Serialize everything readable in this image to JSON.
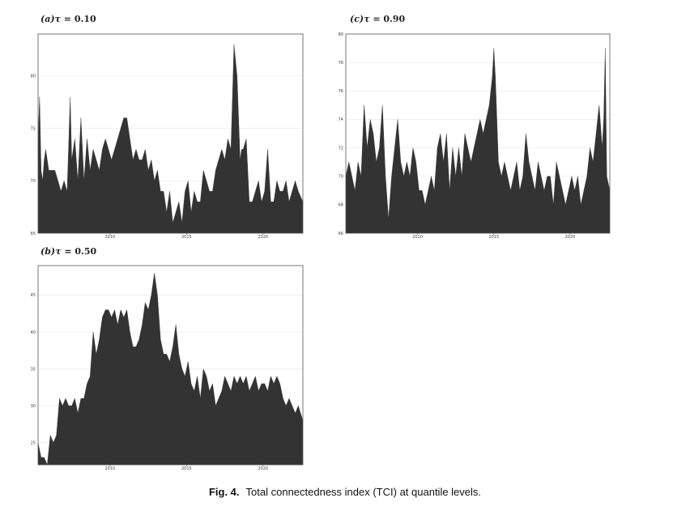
{
  "caption": {
    "label": "Fig. 4.",
    "text": "Total connectedness index (TCI) at quantile levels."
  },
  "chart_data": [
    {
      "id": "a",
      "type": "area",
      "title_prefix": "(a)",
      "title_tau": "τ",
      "title_value": "= 0.10",
      "xlim": [
        2005.3,
        2022.6
      ],
      "ylim": [
        65,
        84
      ],
      "x_ticks": [
        2010,
        2015,
        2020
      ],
      "y_ticks": [
        65,
        70,
        75,
        80
      ],
      "x_tick_labels": [
        "2010",
        "2015",
        "2020"
      ],
      "y_tick_labels": [
        "65",
        "70",
        "75",
        "80"
      ],
      "fill_color": "#333333",
      "x": [
        2005.3,
        2005.4,
        2005.5,
        2005.6,
        2005.7,
        2005.8,
        2005.9,
        2006.0,
        2006.2,
        2006.4,
        2006.6,
        2006.8,
        2007.0,
        2007.2,
        2007.4,
        2007.5,
        2007.7,
        2007.9,
        2008.1,
        2008.3,
        2008.5,
        2008.7,
        2008.9,
        2009.1,
        2009.3,
        2009.5,
        2009.7,
        2009.9,
        2010.1,
        2010.3,
        2010.5,
        2010.7,
        2010.9,
        2011.1,
        2011.3,
        2011.5,
        2011.7,
        2011.9,
        2012.1,
        2012.3,
        2012.5,
        2012.7,
        2012.9,
        2013.1,
        2013.3,
        2013.5,
        2013.7,
        2013.9,
        2014.1,
        2014.3,
        2014.5,
        2014.7,
        2014.9,
        2015.1,
        2015.3,
        2015.5,
        2015.7,
        2015.9,
        2016.1,
        2016.3,
        2016.5,
        2016.7,
        2016.9,
        2017.1,
        2017.3,
        2017.5,
        2017.7,
        2017.9,
        2018.1,
        2018.3,
        2018.5,
        2018.6,
        2018.7,
        2018.9,
        2019.1,
        2019.3,
        2019.5,
        2019.7,
        2019.9,
        2020.1,
        2020.3,
        2020.5,
        2020.7,
        2020.9,
        2021.1,
        2021.3,
        2021.5,
        2021.7,
        2021.9,
        2022.1,
        2022.3,
        2022.6
      ],
      "y": [
        74,
        78,
        71,
        70,
        72,
        73,
        72,
        71,
        71,
        71,
        70,
        69,
        70,
        69,
        78,
        72,
        74,
        70,
        76,
        70,
        74,
        71,
        73,
        72,
        71,
        73,
        74,
        73,
        72,
        73,
        74,
        75,
        76,
        76,
        74,
        72,
        73,
        72,
        72,
        73,
        71,
        72,
        70,
        71,
        69,
        69,
        67,
        69,
        66,
        67,
        68,
        66,
        69,
        70,
        67,
        69,
        68,
        68,
        71,
        70,
        69,
        69,
        71,
        72,
        73,
        72,
        74,
        73,
        83,
        80,
        72,
        73,
        73,
        74,
        68,
        68,
        69,
        70,
        68,
        69,
        73,
        68,
        68,
        70,
        69,
        69,
        70,
        68,
        69,
        70,
        69,
        68
      ]
    },
    {
      "id": "c",
      "type": "area",
      "title_prefix": "(c)",
      "title_tau": "τ",
      "title_value": "= 0.90",
      "xlim": [
        2005.3,
        2022.6
      ],
      "ylim": [
        66,
        80
      ],
      "x_ticks": [
        2010,
        2015,
        2020
      ],
      "y_ticks": [
        66,
        68,
        70,
        72,
        74,
        76,
        78,
        80
      ],
      "x_tick_labels": [
        "2010",
        "2015",
        "2020"
      ],
      "y_tick_labels": [
        "66",
        "68",
        "70",
        "72",
        "74",
        "76",
        "78",
        "80"
      ],
      "fill_color": "#333333",
      "x": [
        2005.3,
        2005.5,
        2005.7,
        2005.9,
        2006.1,
        2006.3,
        2006.5,
        2006.7,
        2006.9,
        2007.1,
        2007.3,
        2007.5,
        2007.7,
        2007.9,
        2008.1,
        2008.3,
        2008.5,
        2008.7,
        2008.9,
        2009.1,
        2009.3,
        2009.5,
        2009.7,
        2009.9,
        2010.1,
        2010.3,
        2010.5,
        2010.7,
        2010.9,
        2011.1,
        2011.3,
        2011.5,
        2011.7,
        2011.9,
        2012.1,
        2012.3,
        2012.5,
        2012.7,
        2012.9,
        2013.1,
        2013.3,
        2013.5,
        2013.7,
        2013.9,
        2014.1,
        2014.3,
        2014.5,
        2014.7,
        2014.9,
        2015.0,
        2015.1,
        2015.3,
        2015.5,
        2015.7,
        2015.9,
        2016.1,
        2016.3,
        2016.5,
        2016.7,
        2016.9,
        2017.1,
        2017.3,
        2017.5,
        2017.7,
        2017.9,
        2018.1,
        2018.3,
        2018.5,
        2018.7,
        2018.9,
        2019.1,
        2019.3,
        2019.5,
        2019.7,
        2019.9,
        2020.1,
        2020.3,
        2020.5,
        2020.7,
        2020.9,
        2021.1,
        2021.3,
        2021.5,
        2021.7,
        2021.9,
        2022.1,
        2022.2,
        2022.3,
        2022.4,
        2022.6
      ],
      "y": [
        70,
        71,
        70,
        69,
        71,
        70,
        75,
        72,
        74,
        73,
        71,
        72,
        75,
        70,
        67,
        70,
        72,
        74,
        71,
        70,
        71,
        70,
        72,
        71,
        69,
        69,
        68,
        69,
        70,
        69,
        72,
        73,
        71,
        73,
        69,
        72,
        70,
        72,
        70,
        73,
        72,
        71,
        72,
        73,
        74,
        73,
        74,
        75,
        77,
        79,
        77,
        71,
        70,
        71,
        70,
        69,
        70,
        71,
        69,
        70,
        73,
        71,
        70,
        69,
        71,
        70,
        69,
        70,
        70,
        68,
        71,
        70,
        69,
        68,
        69,
        70,
        69,
        70,
        68,
        69,
        70,
        72,
        71,
        73,
        75,
        72,
        74,
        79,
        70,
        69
      ]
    },
    {
      "id": "b",
      "type": "area",
      "title_prefix": "(b)",
      "title_tau": "τ",
      "title_value": "= 0.50",
      "xlim": [
        2005.3,
        2022.6
      ],
      "ylim": [
        22,
        49
      ],
      "x_ticks": [
        2010,
        2015,
        2020
      ],
      "y_ticks": [
        25,
        30,
        35,
        40,
        45
      ],
      "x_tick_labels": [
        "2010",
        "2015",
        "2020"
      ],
      "y_tick_labels": [
        "25",
        "30",
        "35",
        "40",
        "45"
      ],
      "fill_color": "#333333",
      "x": [
        2005.3,
        2005.5,
        2005.7,
        2005.9,
        2006.1,
        2006.3,
        2006.5,
        2006.7,
        2006.9,
        2007.1,
        2007.3,
        2007.5,
        2007.7,
        2007.9,
        2008.1,
        2008.3,
        2008.5,
        2008.7,
        2008.9,
        2009.1,
        2009.3,
        2009.5,
        2009.7,
        2009.9,
        2010.1,
        2010.3,
        2010.5,
        2010.7,
        2010.9,
        2011.1,
        2011.3,
        2011.5,
        2011.7,
        2011.9,
        2012.1,
        2012.3,
        2012.5,
        2012.7,
        2012.9,
        2013.1,
        2013.3,
        2013.5,
        2013.7,
        2013.9,
        2014.1,
        2014.3,
        2014.5,
        2014.7,
        2014.9,
        2015.1,
        2015.3,
        2015.5,
        2015.7,
        2015.9,
        2016.1,
        2016.3,
        2016.5,
        2016.7,
        2016.9,
        2017.1,
        2017.3,
        2017.5,
        2017.7,
        2017.9,
        2018.1,
        2018.3,
        2018.5,
        2018.7,
        2018.9,
        2019.1,
        2019.3,
        2019.5,
        2019.7,
        2019.9,
        2020.1,
        2020.3,
        2020.5,
        2020.7,
        2020.9,
        2021.1,
        2021.3,
        2021.5,
        2021.7,
        2021.9,
        2022.1,
        2022.3,
        2022.6
      ],
      "y": [
        25,
        23,
        23,
        22,
        26,
        25,
        26,
        31,
        30,
        31,
        30,
        30,
        31,
        29,
        31,
        31,
        33,
        34,
        40,
        37,
        39,
        42,
        43,
        43,
        42,
        43,
        41,
        43,
        42,
        43,
        40,
        38,
        38,
        39,
        41,
        44,
        43,
        45,
        48,
        45,
        39,
        37,
        37,
        36,
        38,
        41,
        37,
        35,
        34,
        36,
        33,
        32,
        34,
        31,
        35,
        34,
        32,
        33,
        30,
        31,
        32,
        34,
        33,
        32,
        34,
        33,
        34,
        33,
        34,
        32,
        33,
        34,
        32,
        33,
        33,
        32,
        34,
        33,
        34,
        33,
        31,
        30,
        31,
        30,
        29,
        30,
        28
      ]
    }
  ]
}
